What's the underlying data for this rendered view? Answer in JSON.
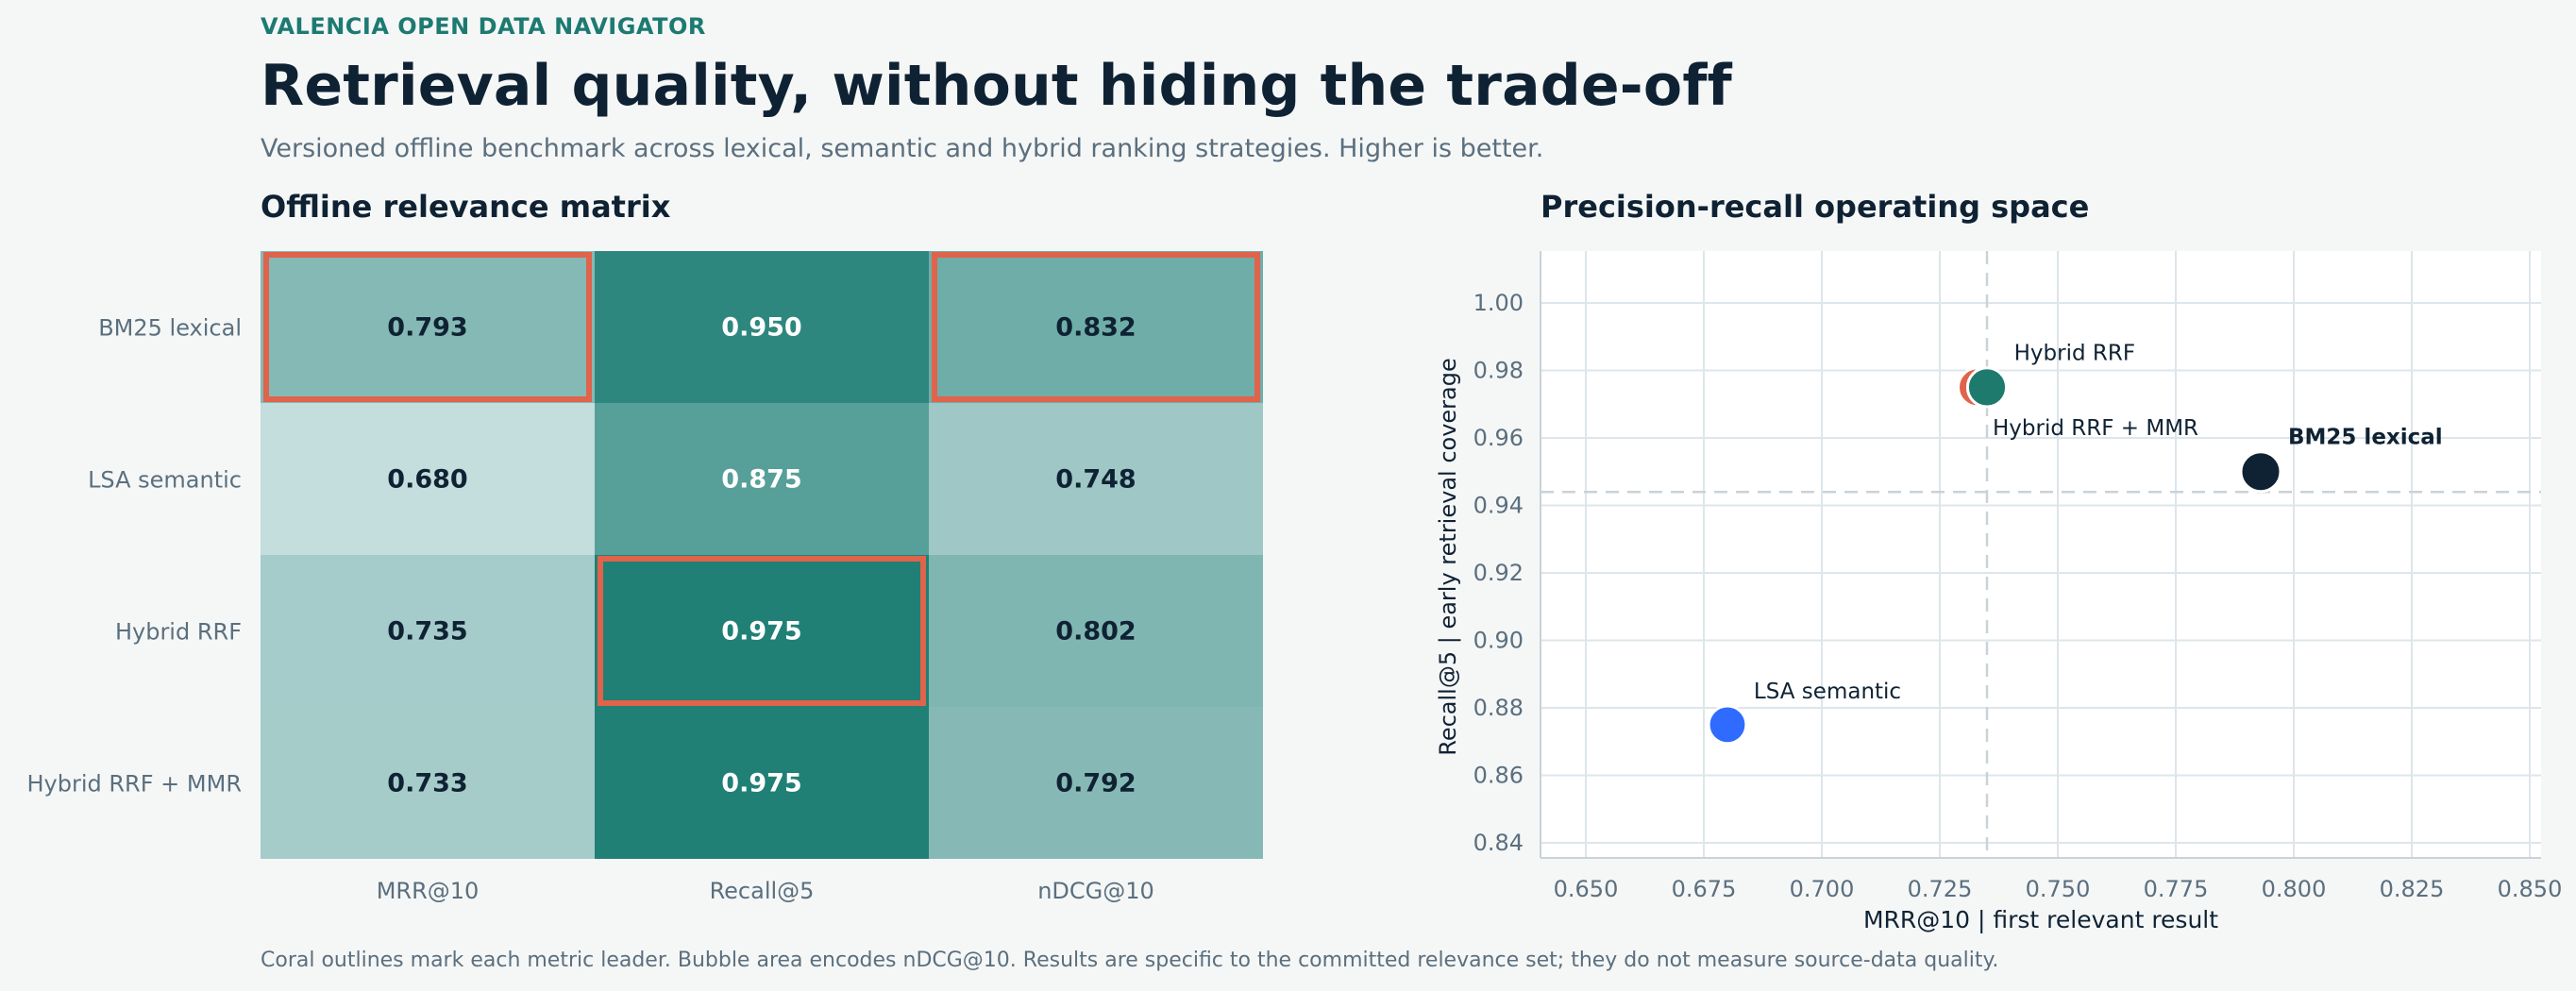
{
  "header": {
    "eyebrow": "VALENCIA OPEN DATA NAVIGATOR",
    "title": "Retrieval quality, without hiding the trade-off",
    "subtitle": "Versioned offline benchmark across lexical, semantic and hybrid ranking strategies. Higher is better."
  },
  "footnote": "Coral outlines mark each metric leader. Bubble area encodes nDCG@10. Results are specific to the committed relevance set; they do not measure source-data quality.",
  "colors": {
    "accent": "#1d7a71",
    "leader_outline": "#e0634b",
    "dark": "#0f2233",
    "lsa": "#2f6bff",
    "hybrid": "#1f7a6e",
    "hybrid_mmr": "#e0634b"
  },
  "chart_data": [
    {
      "type": "heatmap",
      "title": "Offline relevance matrix",
      "rows": [
        "BM25 lexical",
        "LSA semantic",
        "Hybrid RRF",
        "Hybrid RRF + MMR"
      ],
      "columns": [
        "MRR@10",
        "Recall@5",
        "nDCG@10"
      ],
      "values": [
        [
          0.793,
          0.95,
          0.832
        ],
        [
          0.68,
          0.875,
          0.748
        ],
        [
          0.735,
          0.975,
          0.802
        ],
        [
          0.733,
          0.975,
          0.792
        ]
      ],
      "value_labels": [
        [
          "0.793",
          "0.950",
          "0.832"
        ],
        [
          "0.680",
          "0.875",
          "0.748"
        ],
        [
          "0.735",
          "0.975",
          "0.802"
        ],
        [
          "0.733",
          "0.975",
          "0.792"
        ]
      ],
      "leaders": [
        {
          "row": 0,
          "col": 0
        },
        {
          "row": 2,
          "col": 1
        },
        {
          "row": 0,
          "col": 2
        }
      ]
    },
    {
      "type": "scatter",
      "title": "Precision-recall operating space",
      "xlabel": "MRR@10  |  first relevant result",
      "ylabel": "Recall@5  |  early retrieval coverage",
      "xlim": [
        0.64,
        0.855
      ],
      "ylim": [
        0.835,
        1.015
      ],
      "xticks": [
        0.65,
        0.675,
        0.7,
        0.725,
        0.75,
        0.775,
        0.8,
        0.825,
        0.85
      ],
      "xtick_labels": [
        "0.650",
        "0.675",
        "0.700",
        "0.725",
        "0.750",
        "0.775",
        "0.800",
        "0.825",
        "0.850"
      ],
      "yticks": [
        0.84,
        0.86,
        0.88,
        0.9,
        0.92,
        0.94,
        0.96,
        0.98,
        1.0
      ],
      "ytick_labels": [
        "0.84",
        "0.86",
        "0.88",
        "0.90",
        "0.92",
        "0.94",
        "0.96",
        "0.98",
        "1.00"
      ],
      "grid": true,
      "reference_lines": {
        "x": 0.735,
        "y": 0.944
      },
      "points": [
        {
          "name": "Hybrid RRF + MMR",
          "x": 0.733,
          "y": 0.975,
          "size": 0.792,
          "color": "#e0634b",
          "bold": false,
          "label_pos": "below-right"
        },
        {
          "name": "Hybrid RRF",
          "x": 0.735,
          "y": 0.975,
          "size": 0.802,
          "color": "#1f7a6e",
          "bold": false,
          "label_pos": "above-right"
        },
        {
          "name": "BM25 lexical",
          "x": 0.793,
          "y": 0.95,
          "size": 0.832,
          "color": "#0f2233",
          "bold": true,
          "label_pos": "above-right"
        },
        {
          "name": "LSA semantic",
          "x": 0.68,
          "y": 0.875,
          "size": 0.748,
          "color": "#2f6bff",
          "bold": false,
          "label_pos": "above-right"
        }
      ]
    }
  ]
}
